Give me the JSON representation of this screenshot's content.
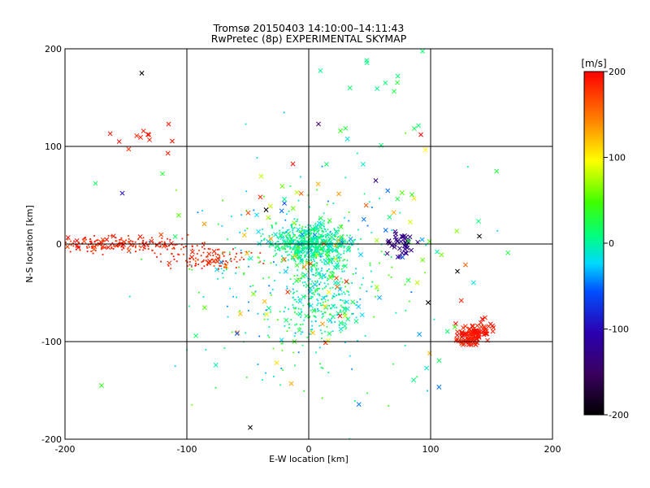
{
  "chart_data": {
    "type": "scatter",
    "title": "Tromsø 20150403 14:10:00–14:11:43",
    "subtitle": "RwPretec (8p) EXPERIMENTAL SKYMAP",
    "xlabel": "E-W location [km]",
    "ylabel": "N-S location [km]",
    "xlim": [
      -200,
      200
    ],
    "ylim": [
      -200,
      200
    ],
    "xticks": [
      "-200",
      "-100",
      "0",
      "100",
      "200"
    ],
    "yticks": [
      "-200",
      "-100",
      "0",
      "100",
      "200"
    ],
    "grid": true,
    "colorbar": {
      "label": "[m/s]",
      "range": [
        -200,
        200
      ],
      "ticks": [
        "200",
        "100",
        "0",
        "-100",
        "-200"
      ],
      "colormap": "black-purple-blue-cyan-green-yellow-orange-red"
    },
    "clusters": [
      {
        "cx": 2,
        "cy": 0,
        "sx": 16,
        "sy": 10,
        "n": 700,
        "v": [
          -20,
          25
        ],
        "mark": "dot"
      },
      {
        "cx": 8,
        "cy": -55,
        "sx": 14,
        "sy": 20,
        "n": 260,
        "v": [
          -30,
          30
        ],
        "mark": "dot"
      },
      {
        "cx": -10,
        "cy": -40,
        "sx": 50,
        "sy": 55,
        "n": 300,
        "v": [
          -50,
          60
        ],
        "mark": "dot"
      },
      {
        "cx": -160,
        "cy": 0,
        "sx": 30,
        "sy": 4,
        "n": 220,
        "v": [
          170,
          200
        ],
        "mark": "dot"
      },
      {
        "cx": -80,
        "cy": -15,
        "sx": 18,
        "sy": 6,
        "n": 110,
        "v": [
          160,
          200
        ],
        "mark": "dot"
      },
      {
        "cx": 135,
        "cy": -92,
        "sx": 8,
        "sy": 7,
        "n": 110,
        "v": [
          180,
          200
        ],
        "mark": "x"
      },
      {
        "cx": 75,
        "cy": 0,
        "sx": 7,
        "sy": 6,
        "n": 40,
        "v": [
          -140,
          -110
        ],
        "mark": "x"
      },
      {
        "cx": 20,
        "cy": -20,
        "sx": 60,
        "sy": 70,
        "n": 110,
        "v": [
          -60,
          200
        ],
        "mark": "x"
      },
      {
        "cx": 60,
        "cy": 160,
        "sx": 30,
        "sy": 25,
        "n": 14,
        "v": [
          0,
          30
        ],
        "mark": "x"
      },
      {
        "cx": -130,
        "cy": 110,
        "sx": 15,
        "sy": 8,
        "n": 12,
        "v": [
          180,
          200
        ],
        "mark": "x"
      }
    ],
    "outliers": [
      {
        "x": -137,
        "y": 175,
        "v": -200
      },
      {
        "x": -153,
        "y": 52,
        "v": -95
      },
      {
        "x": 8,
        "y": 123,
        "v": -150
      },
      {
        "x": 140,
        "y": 8,
        "v": -200
      },
      {
        "x": 98,
        "y": -60,
        "v": -200
      },
      {
        "x": -48,
        "y": -188,
        "v": -200
      },
      {
        "x": -35,
        "y": 35,
        "v": -200
      },
      {
        "x": 55,
        "y": 65,
        "v": -130
      },
      {
        "x": -175,
        "y": 62,
        "v": 20
      },
      {
        "x": -170,
        "y": -145,
        "v": 40
      },
      {
        "x": -120,
        "y": 72,
        "v": 30
      },
      {
        "x": 122,
        "y": -28,
        "v": -200
      },
      {
        "x": 92,
        "y": 112,
        "v": 200
      }
    ]
  }
}
